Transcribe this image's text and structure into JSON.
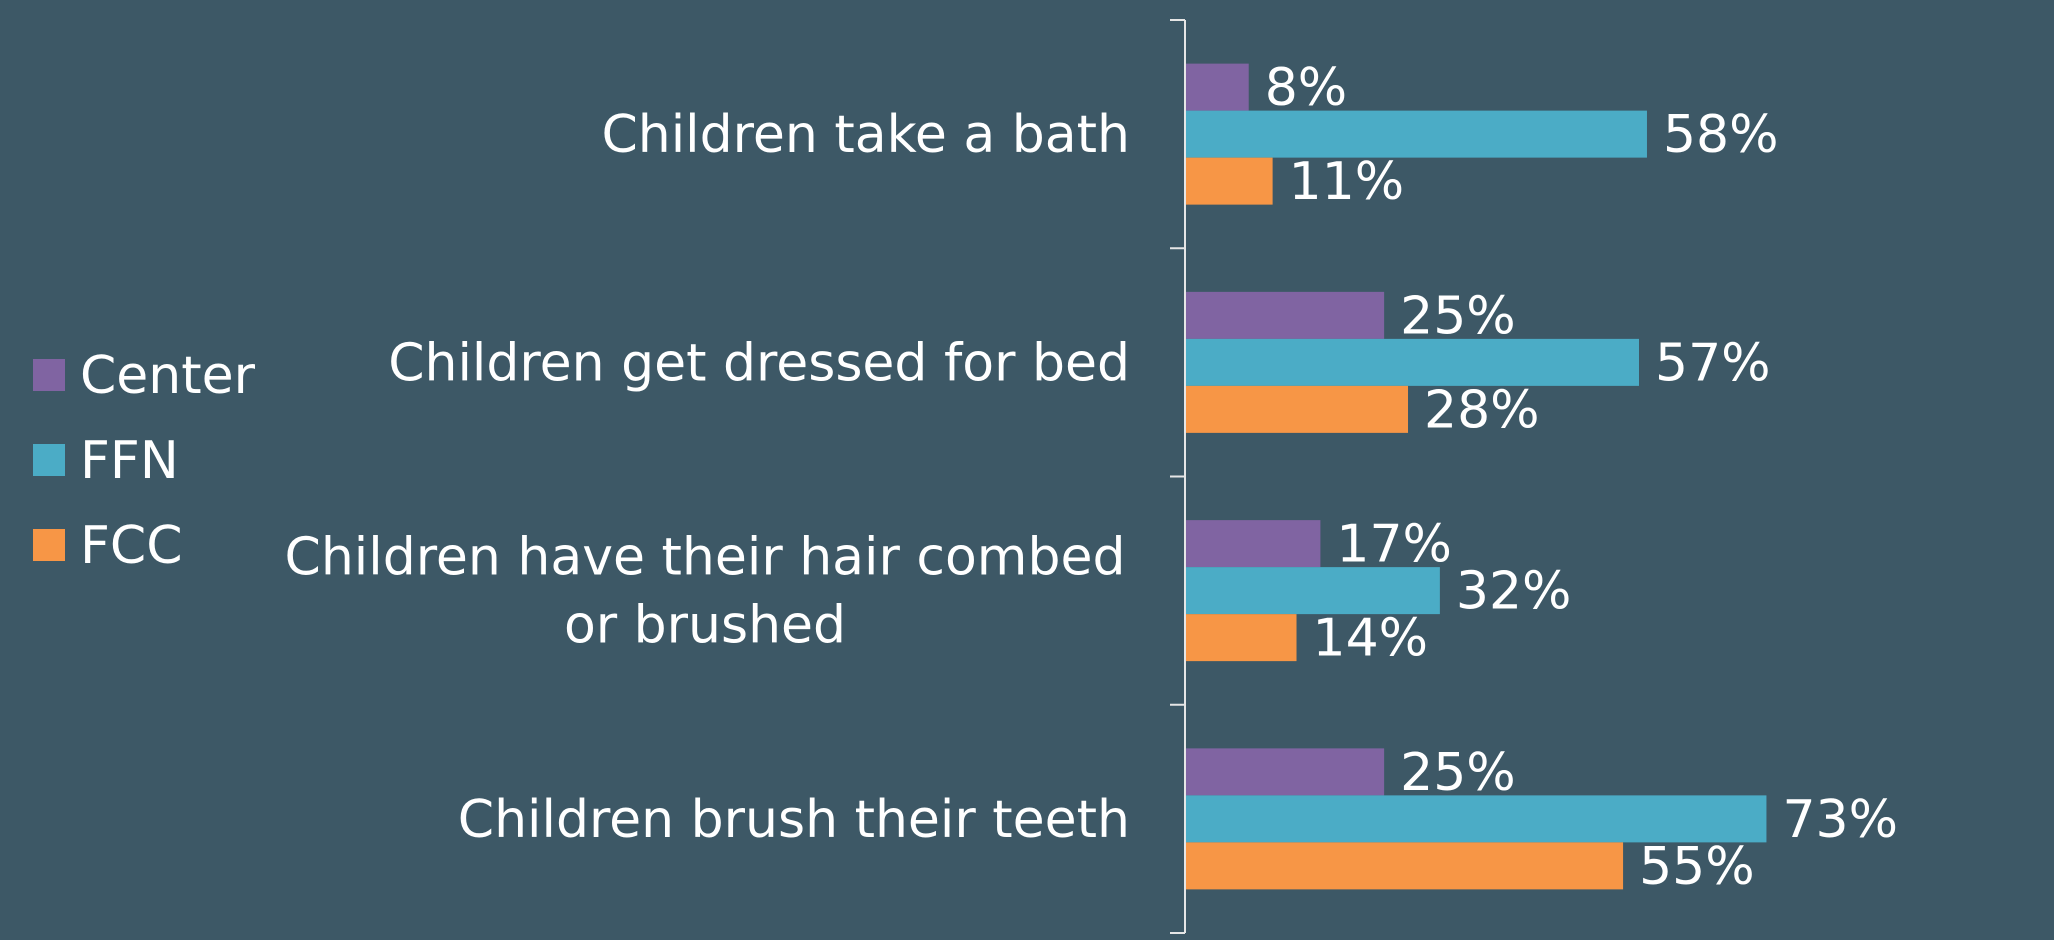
{
  "chart_data": {
    "type": "bar",
    "orientation": "horizontal",
    "categories": [
      "Children take a bath",
      "Children get dressed for bed",
      "Children have their hair combed or brushed",
      "Children brush their teeth"
    ],
    "category_lines": [
      [
        "Children take a bath"
      ],
      [
        "Children get dressed for bed"
      ],
      [
        "Children have their hair combed",
        "or brushed"
      ],
      [
        "Children brush their teeth"
      ]
    ],
    "series": [
      {
        "name": "Center",
        "color": "#8064a2",
        "values": [
          8,
          25,
          17,
          25
        ],
        "labels": [
          "8%",
          "25%",
          "17%",
          "25%"
        ]
      },
      {
        "name": "FFN",
        "color": "#4bacc6",
        "values": [
          58,
          57,
          32,
          73
        ],
        "labels": [
          "58%",
          "57%",
          "32%",
          "73%"
        ]
      },
      {
        "name": "FCC",
        "color": "#f79646",
        "values": [
          11,
          28,
          14,
          55
        ],
        "labels": [
          "11%",
          "28%",
          "14%",
          "55%"
        ]
      }
    ],
    "title": "",
    "xlabel": "",
    "ylabel": "",
    "xlim": [
      0,
      100
    ],
    "grid": false,
    "axis_ticks_shown": false,
    "legend_position": "left"
  }
}
